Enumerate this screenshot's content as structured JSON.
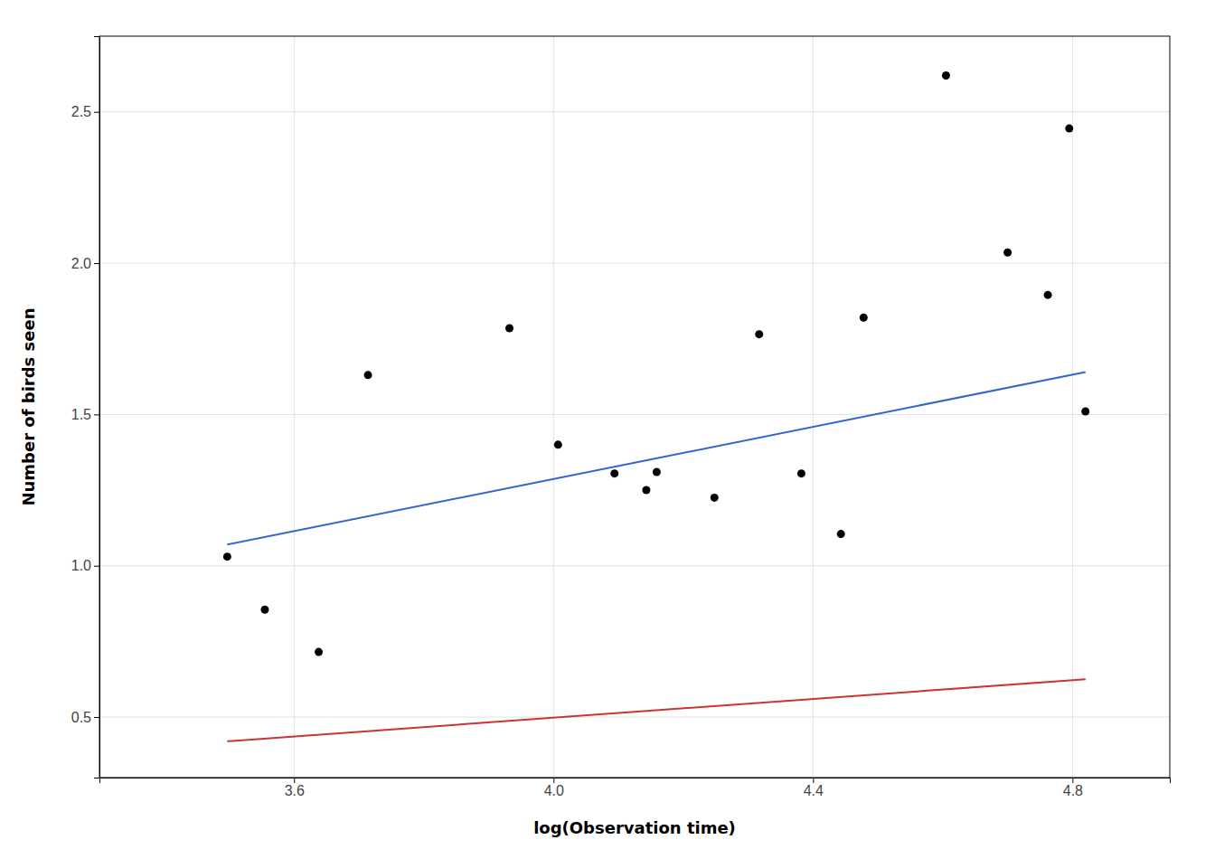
{
  "chart_data": {
    "type": "scatter",
    "xlabel": "log(Observation time)",
    "ylabel": "Number of birds seen",
    "xlim": [
      3.3,
      4.95
    ],
    "ylim": [
      0.3,
      2.75
    ],
    "xticks": [
      3.6,
      {
        "value": 4.0,
        "label": "4.0"
      },
      4.4,
      4.8
    ],
    "yticks": [
      0.5,
      {
        "value": 1.0,
        "label": "1.0"
      },
      1.5,
      {
        "value": 2.0,
        "label": "2.0"
      },
      2.5
    ],
    "grid": true,
    "series": [
      {
        "type": "line",
        "color": "#3366CC",
        "x": [
          3.497,
          4.82
        ],
        "values": [
          1.07,
          1.64
        ]
      },
      {
        "type": "line",
        "color": "#CC3333",
        "x": [
          3.497,
          4.82
        ],
        "values": [
          0.42,
          0.625
        ]
      },
      {
        "type": "scatter",
        "color": "#000000",
        "x": [
          3.497,
          3.555,
          3.638,
          3.714,
          3.932,
          4.007,
          4.094,
          4.143,
          4.159,
          4.248,
          4.317,
          4.382,
          4.443,
          4.478,
          4.605,
          4.7,
          4.762,
          4.795,
          4.82
        ],
        "values": [
          1.03,
          0.855,
          0.715,
          1.63,
          1.785,
          1.4,
          1.305,
          1.25,
          1.31,
          1.225,
          1.765,
          1.305,
          1.105,
          1.82,
          2.62,
          2.035,
          1.895,
          2.445,
          1.51
        ]
      }
    ]
  }
}
